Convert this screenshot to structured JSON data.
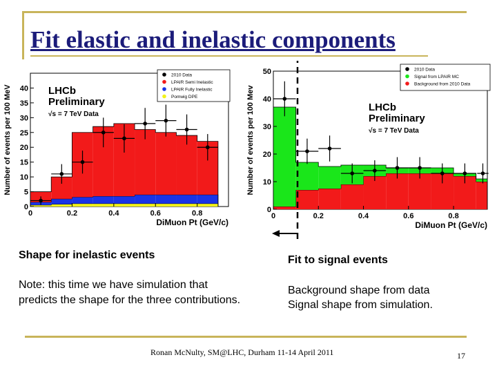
{
  "slide": {
    "title": "Fit elastic and inelastic components",
    "left_caption": "Shape for inelastic events",
    "left_note": "Note: this time we have simulation that predicts the shape for the three contributions.",
    "right_caption": "Fit to signal events",
    "right_note_1": "Background shape from data",
    "right_note_2": "Signal shape from simulation.",
    "footer": "Ronan McNulty, SM@LHC, Durham 11-14 April 2011",
    "page_number": "17",
    "accent_color": "#c8b45a"
  },
  "chart_data": [
    {
      "type": "bar",
      "subtype": "stacked-histogram-with-data-points",
      "title": "",
      "xlabel": "DiMuon Pt (GeV/c)",
      "ylabel": "Number of events per 100 MeV",
      "xlim": [
        0,
        0.95
      ],
      "ylim": [
        0,
        45
      ],
      "xticks": [
        0,
        0.2,
        0.4,
        0.6,
        0.8
      ],
      "xtick_labels": [
        "0",
        "0.2",
        "0.4",
        "0.6",
        "0.8"
      ],
      "yticks": [
        0,
        5,
        10,
        15,
        20,
        25,
        30,
        35,
        40
      ],
      "ytick_labels": [
        "0",
        "5",
        "10",
        "15",
        "20",
        "25",
        "30",
        "35",
        "40"
      ],
      "bin_edges": [
        0,
        0.1,
        0.2,
        0.3,
        0.4,
        0.5,
        0.6,
        0.7,
        0.8,
        0.9
      ],
      "series": [
        {
          "name": "Pomwig DPE",
          "color": "#f2f21a",
          "values": [
            0.5,
            0.8,
            1.0,
            1.0,
            1.0,
            1.0,
            1.0,
            1.0,
            1.0
          ]
        },
        {
          "name": "LPAIR Fully Inelastic",
          "color": "#1a33e6",
          "values": [
            1.0,
            1.8,
            2.2,
            2.5,
            2.5,
            3.0,
            3.0,
            3.0,
            3.0
          ]
        },
        {
          "name": "LPAIR Semi Inelastic",
          "color": "#f21a1a",
          "values": [
            3.5,
            7.4,
            21.8,
            23.5,
            24.5,
            22.0,
            21.0,
            20.0,
            18.0
          ]
        }
      ],
      "data_series": {
        "name": "2010 Data",
        "x": [
          0.05,
          0.15,
          0.25,
          0.35,
          0.45,
          0.55,
          0.65,
          0.75,
          0.85
        ],
        "y": [
          2,
          11,
          15,
          25,
          23,
          28,
          29,
          26,
          20
        ]
      },
      "annotations": [
        "LHCb",
        "Preliminary",
        "√s = 7 TeV Data"
      ],
      "legend_position": "top-right"
    },
    {
      "type": "bar",
      "subtype": "stacked-histogram-with-data-points",
      "title": "",
      "xlabel": "DiMuon Pt (GeV/c)",
      "ylabel": "Number of events per 100 Mev",
      "xlim": [
        0,
        0.95
      ],
      "ylim": [
        0,
        50
      ],
      "xticks": [
        0,
        0.2,
        0.4,
        0.6,
        0.8
      ],
      "xtick_labels": [
        "0",
        "0.2",
        "0.4",
        "0.6",
        "0.8"
      ],
      "yticks": [
        0,
        10,
        20,
        30,
        40,
        50
      ],
      "ytick_labels": [
        "0",
        "10",
        "20",
        "30",
        "40",
        "50"
      ],
      "bin_edges": [
        0,
        0.1,
        0.2,
        0.3,
        0.4,
        0.5,
        0.6,
        0.7,
        0.8,
        0.9,
        0.95
      ],
      "series": [
        {
          "name": "Background from 2010 Data",
          "color": "#f21a1a",
          "values": [
            1.0,
            7.0,
            7.5,
            9.0,
            12.0,
            13.0,
            13.0,
            13.0,
            12.0,
            10.0
          ]
        },
        {
          "name": "Signal from LPAIR MC",
          "color": "#1ae61a",
          "values": [
            36.0,
            10.0,
            8.0,
            7.0,
            4.0,
            2.0,
            2.0,
            2.0,
            1.0,
            1.0
          ]
        }
      ],
      "data_series": {
        "name": "2010 Data",
        "x": [
          0.05,
          0.15,
          0.25,
          0.35,
          0.45,
          0.55,
          0.65,
          0.75,
          0.85,
          0.93
        ],
        "y": [
          40,
          21,
          22,
          13,
          14,
          15,
          15,
          13,
          13,
          13
        ]
      },
      "annotations": [
        "LHCb",
        "Preliminary",
        "√s = 7 TeV Data"
      ],
      "legend_position": "top-right"
    }
  ]
}
